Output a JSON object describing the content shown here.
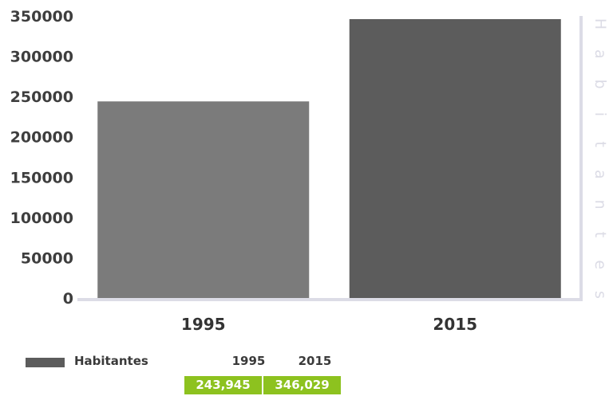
{
  "chart_data": {
    "type": "bar",
    "categories": [
      "1995",
      "2015"
    ],
    "series": [
      {
        "name": "Habitantes",
        "values": [
          243945,
          346029
        ]
      }
    ],
    "secondary_title": "Habitantes",
    "ylim": [
      0,
      350000
    ],
    "yticks": [
      0,
      50000,
      100000,
      150000,
      200000,
      250000,
      300000,
      350000
    ],
    "grid": false,
    "legend_position": "bottom-left",
    "bar_colors": [
      "#7b7b7b",
      "#5c5c5c"
    ]
  },
  "data_table": {
    "label": "Habitantes",
    "headers": [
      "1995",
      "2015"
    ],
    "values": [
      "243,945",
      "346,029"
    ],
    "cell_color": "#8dc21f"
  }
}
